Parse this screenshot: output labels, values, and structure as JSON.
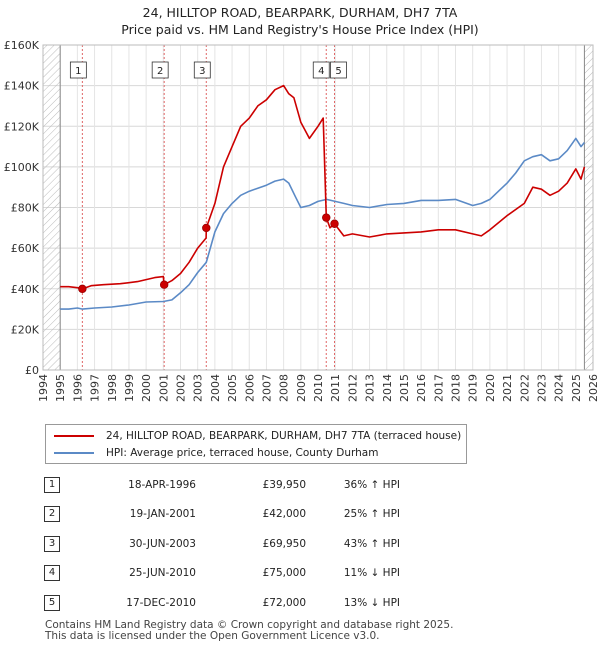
{
  "title_line1": "24, HILLTOP ROAD, BEARPARK, DURHAM, DH7 7TA",
  "title_line2": "Price paid vs. HM Land Registry's House Price Index (HPI)",
  "colors": {
    "property": "#cc0000",
    "hpi": "#5b8ac6",
    "marker_line": "#e06666",
    "hatch": "#bbbbbb"
  },
  "legend": {
    "property": "24, HILLTOP ROAD, BEARPARK, DURHAM, DH7 7TA (terraced house)",
    "hpi": "HPI: Average price, terraced house, County Durham"
  },
  "sales": [
    {
      "num": "1",
      "date": "18-APR-1996",
      "price": "£39,950",
      "hpi": "36% ↑ HPI"
    },
    {
      "num": "2",
      "date": "19-JAN-2001",
      "price": "£42,000",
      "hpi": "25% ↑ HPI"
    },
    {
      "num": "3",
      "date": "30-JUN-2003",
      "price": "£69,950",
      "hpi": "43% ↑ HPI"
    },
    {
      "num": "4",
      "date": "25-JUN-2010",
      "price": "£75,000",
      "hpi": "11% ↓ HPI"
    },
    {
      "num": "5",
      "date": "17-DEC-2010",
      "price": "£72,000",
      "hpi": "13% ↓ HPI"
    }
  ],
  "footer_line1": "Contains HM Land Registry data © Crown copyright and database right 2025.",
  "footer_line2": "This data is licensed under the Open Government Licence v3.0.",
  "chart_data": {
    "type": "line",
    "title": "Price paid vs. HM Land Registry's House Price Index (HPI)",
    "xlim": [
      1994,
      2026
    ],
    "ylim": [
      0,
      160000
    ],
    "x_ticks": [
      1994,
      1995,
      1996,
      1997,
      1998,
      1999,
      2000,
      2001,
      2002,
      2003,
      2004,
      2005,
      2006,
      2007,
      2008,
      2009,
      2010,
      2011,
      2012,
      2013,
      2014,
      2015,
      2016,
      2017,
      2018,
      2019,
      2020,
      2021,
      2022,
      2023,
      2024,
      2025,
      2026
    ],
    "x_tick_labels": [
      "1994",
      "1995",
      "1996",
      "1997",
      "1998",
      "1999",
      "2000",
      "2001",
      "2002",
      "2003",
      "2004",
      "2005",
      "2006",
      "2007",
      "2008",
      "2009",
      "2010",
      "2011",
      "2012",
      "2013",
      "2014",
      "2015",
      "2016",
      "2017",
      "2018",
      "2019",
      "2020",
      "2021",
      "2022",
      "2023",
      "2024",
      "2025",
      "2026"
    ],
    "y_ticks": [
      0,
      20000,
      40000,
      60000,
      80000,
      100000,
      120000,
      140000,
      160000
    ],
    "y_tick_labels": [
      "£0",
      "£20K",
      "£40K",
      "£60K",
      "£80K",
      "£100K",
      "£120K",
      "£140K",
      "£160K"
    ],
    "data_start": 1995.0,
    "data_end": 2025.5,
    "sales": [
      {
        "num": "1",
        "x": 1996.29,
        "price": 39950
      },
      {
        "num": "2",
        "x": 2001.05,
        "price": 42000
      },
      {
        "num": "3",
        "x": 2003.5,
        "price": 69950
      },
      {
        "num": "4",
        "x": 2010.48,
        "price": 75000
      },
      {
        "num": "5",
        "x": 2010.96,
        "price": 72000
      }
    ],
    "series": [
      {
        "name": "HPI: Average price, terraced house, County Durham",
        "x": [
          1995.0,
          1995.5,
          1996.0,
          1996.3,
          1997.0,
          1998.0,
          1999.0,
          2000.0,
          2001.0,
          2001.5,
          2002.0,
          2002.5,
          2003.0,
          2003.5,
          2004.0,
          2004.5,
          2005.0,
          2005.5,
          2006.0,
          2006.5,
          2007.0,
          2007.5,
          2008.0,
          2008.3,
          2008.7,
          2009.0,
          2009.5,
          2010.0,
          2010.5,
          2011.0,
          2011.5,
          2012.0,
          2013.0,
          2014.0,
          2015.0,
          2016.0,
          2017.0,
          2018.0,
          2019.0,
          2019.5,
          2020.0,
          2020.5,
          2021.0,
          2021.5,
          2022.0,
          2022.5,
          2023.0,
          2023.5,
          2024.0,
          2024.5,
          2025.0,
          2025.3,
          2025.5
        ],
        "values": [
          30000,
          30000,
          30500,
          30000,
          30500,
          31000,
          32000,
          33500,
          33700,
          34500,
          38000,
          42000,
          48000,
          53000,
          68000,
          77000,
          82000,
          86000,
          88000,
          89500,
          91000,
          93000,
          94000,
          92000,
          85000,
          80000,
          81000,
          83000,
          84000,
          83000,
          82000,
          81000,
          80000,
          81500,
          82000,
          83500,
          83500,
          84000,
          81000,
          82000,
          84000,
          88000,
          92000,
          97000,
          103000,
          105000,
          106000,
          103000,
          104000,
          108000,
          114000,
          110000,
          112000
        ]
      },
      {
        "name": "24, HILLTOP ROAD, BEARPARK, DURHAM, DH7 7TA (terraced house)",
        "x": [
          1995.0,
          1995.5,
          1996.0,
          1996.29,
          1996.8,
          1997.5,
          1998.5,
          1999.5,
          2000.5,
          2001.0,
          2001.05,
          2001.5,
          2002.0,
          2002.5,
          2003.0,
          2003.49,
          2003.5,
          2004.0,
          2004.5,
          2005.0,
          2005.5,
          2006.0,
          2006.5,
          2007.0,
          2007.5,
          2008.0,
          2008.3,
          2008.6,
          2009.0,
          2009.5,
          2010.0,
          2010.3,
          2010.48,
          2010.7,
          2010.96,
          2011.5,
          2012.0,
          2013.0,
          2014.0,
          2015.0,
          2016.0,
          2017.0,
          2018.0,
          2019.0,
          2019.5,
          2020.0,
          2021.0,
          2022.0,
          2022.5,
          2023.0,
          2023.5,
          2024.0,
          2024.5,
          2025.0,
          2025.3,
          2025.5
        ],
        "values": [
          41000,
          41000,
          40500,
          39950,
          41500,
          42000,
          42500,
          43500,
          45500,
          46000,
          42000,
          44000,
          47500,
          53000,
          60000,
          65000,
          69950,
          82000,
          100000,
          110000,
          120000,
          124000,
          130000,
          133000,
          138000,
          140000,
          136000,
          134000,
          122000,
          114000,
          120000,
          124000,
          75000,
          70000,
          72000,
          66000,
          67000,
          65500,
          67000,
          67500,
          68000,
          69000,
          69000,
          67000,
          66000,
          69000,
          76000,
          82000,
          90000,
          89000,
          86000,
          88000,
          92000,
          99000,
          94000,
          100000
        ]
      }
    ]
  }
}
